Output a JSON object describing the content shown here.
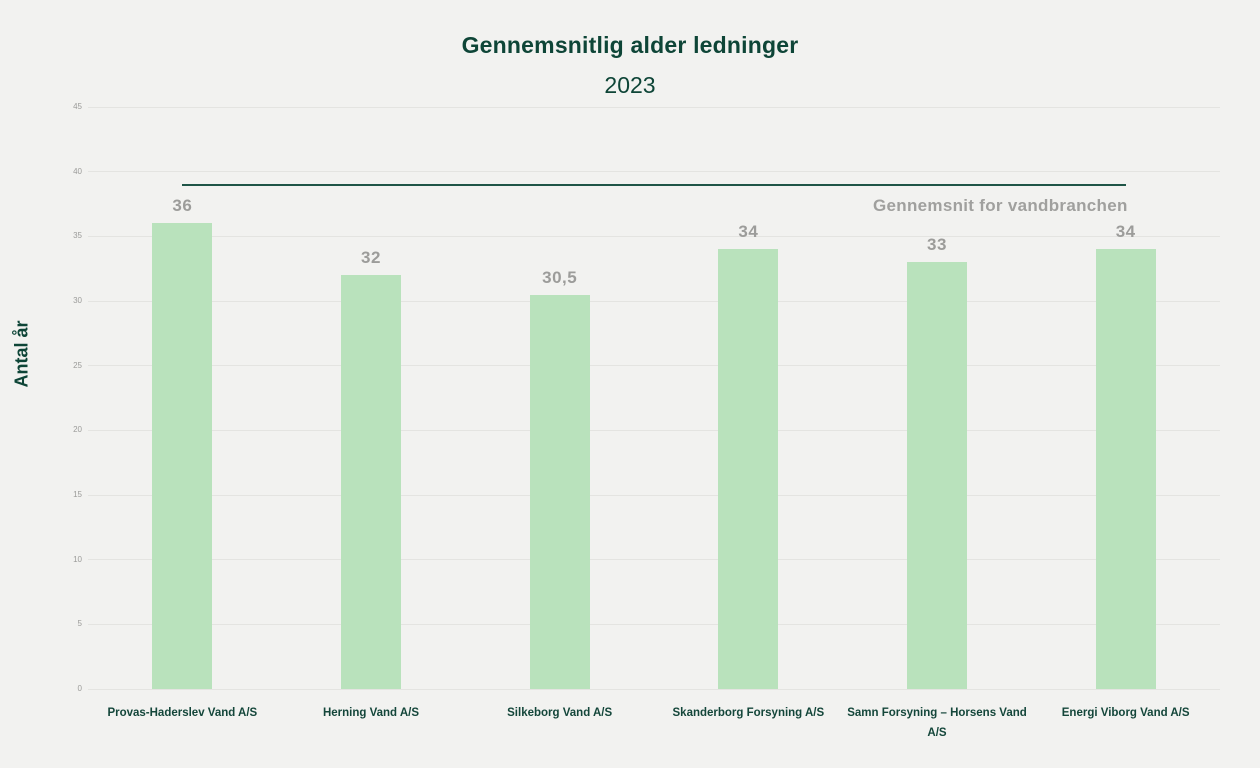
{
  "page": {
    "background_color": "#f2f2f0"
  },
  "chart_data": {
    "type": "bar",
    "title": "Gennemsnitlig alder ledninger",
    "subtitle": "2023",
    "xlabel": "",
    "ylabel": "Antal år",
    "ylim": [
      0,
      45
    ],
    "ytick_step": 5,
    "ytick_labels": [
      "0",
      "5",
      "10",
      "15",
      "20",
      "25",
      "30",
      "35",
      "40",
      "45"
    ],
    "grid": true,
    "legend_position": "none",
    "categories": [
      "Provas-Haderslev Vand A/S",
      "Herning Vand A/S",
      "Silkeborg Vand A/S",
      "Skanderborg Forsyning A/S",
      "Samn Forsyning – Horsens Vand A/S",
      "Energi Viborg Vand A/S"
    ],
    "values": [
      36,
      32,
      30.5,
      34,
      33,
      34
    ],
    "value_labels": [
      "36",
      "32",
      "30,5",
      "34",
      "33",
      "34"
    ],
    "reference_line": {
      "value": 39,
      "label": "Gennemsnit for vandbranchen",
      "color": "#1f5547"
    },
    "bar_color": "#b9e2bc",
    "value_label_color": "#9c9c9a",
    "title_color": "#0e4537",
    "axis_label_color": "#14463a",
    "tick_color": "#9b9b99",
    "gridline_color": "#e4e4e1"
  }
}
